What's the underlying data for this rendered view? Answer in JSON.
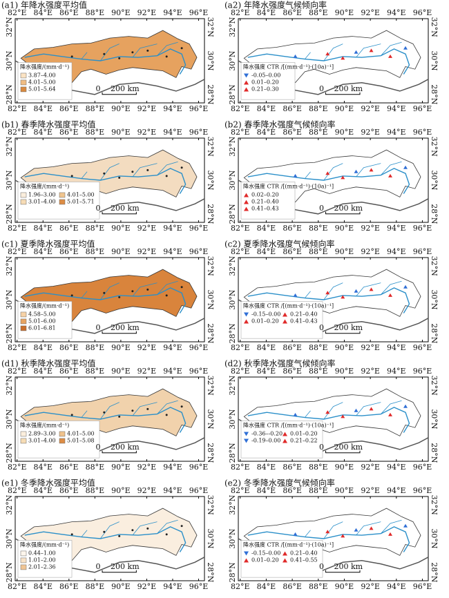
{
  "axes": {
    "x_ticks": [
      "82°E",
      "84°E",
      "86°E",
      "88°E",
      "90°E",
      "92°E",
      "94°E",
      "96°E"
    ],
    "y_ticks": [
      "28°N",
      "30°N",
      "32°N"
    ]
  },
  "scale_bar": {
    "start": "0",
    "end": "200 km"
  },
  "panels": [
    {
      "title": "(a1) 年降水强度平均值",
      "fill": "#e6a25f",
      "legend": {
        "title": "降水强度/(mm·d⁻¹)",
        "items": [
          {
            "label": "3.87–4.00",
            "color": "#fbe3c4"
          },
          {
            "label": "4.01–5.00",
            "color": "#f0bd84"
          },
          {
            "label": "5.01–5.64",
            "color": "#d98a3f"
          }
        ]
      }
    },
    {
      "title": "(a2) 年降水强度气候倾向率",
      "legend": {
        "title": "降水强度 CTR /[(mm·d⁻¹)·(10a)⁻¹]",
        "items": [
          {
            "label": "-0.05–0.00",
            "symbol": "down",
            "color": "#2f6fd6"
          },
          {
            "label": "0.01–0.20",
            "symbol": "up",
            "color": "#e02a2a"
          },
          {
            "label": "0.21–0.30",
            "symbol": "up",
            "color": "#e02a2a"
          }
        ]
      }
    },
    {
      "title": "(b1) 春季降水强度平均值",
      "fill": "#f3dcc0",
      "legend": {
        "title": "降水强度/(mm·d⁻¹)",
        "items": [
          {
            "label": "1.96–3.00",
            "color": "#fbeedd"
          },
          {
            "label": "4.01–5.00",
            "color": "#f0c58f"
          },
          {
            "label": "3.01–4.00",
            "color": "#f6dcb5"
          },
          {
            "label": "5.01–5.71",
            "color": "#dd8d45"
          }
        ]
      }
    },
    {
      "title": "(b2) 春季降水强度气候倾向率",
      "legend": {
        "title": "降水强度 CTR /[(mm·d⁻¹)·(10a)⁻¹]",
        "items": [
          {
            "label": "0.02–0.20",
            "symbol": "up",
            "color": "#e02a2a"
          },
          {
            "label": "0.21–0.40",
            "symbol": "up",
            "color": "#e02a2a"
          },
          {
            "label": "0.41–0.43",
            "symbol": "up",
            "color": "#e02a2a"
          }
        ]
      }
    },
    {
      "title": "(c1) 夏季降水强度平均值",
      "fill": "#d9843c",
      "legend": {
        "title": "降水强度/(mm·d⁻¹)",
        "items": [
          {
            "label": "4.58–5.00",
            "color": "#f6d2a6"
          },
          {
            "label": "5.01–6.00",
            "color": "#e7a462"
          },
          {
            "label": "6.01–6.81",
            "color": "#c96f2c"
          }
        ]
      }
    },
    {
      "title": "(c2) 夏季降水强度气候倾向率",
      "legend": {
        "title": "降水强度 CTR /[(mm·d⁻¹)·(10a)⁻¹]",
        "items": [
          {
            "label": "-0.15–0.00",
            "symbol": "down",
            "color": "#2f6fd6"
          },
          {
            "label": "0.21–0.40",
            "symbol": "up",
            "color": "#e02a2a"
          },
          {
            "label": "0.01–0.20",
            "symbol": "up",
            "color": "#e02a2a"
          },
          {
            "label": "0.41–0.43",
            "symbol": "up",
            "color": "#e02a2a"
          }
        ]
      }
    },
    {
      "title": "(d1) 秋季降水强度平均值",
      "fill": "#f1d2ac",
      "legend": {
        "title": "降水强度/(mm·d⁻¹)",
        "items": [
          {
            "label": "2.89–3.00",
            "color": "#fbeedd"
          },
          {
            "label": "4.01–5.00",
            "color": "#efc28c"
          },
          {
            "label": "3.01–4.00",
            "color": "#f6dcb5"
          },
          {
            "label": "5.01–5.08",
            "color": "#dd8d45"
          }
        ]
      }
    },
    {
      "title": "(d2) 秋季降水强度气候倾向率",
      "legend": {
        "title": "降水强度 CTR /[(mm·d⁻¹)·(10a)⁻¹]",
        "items": [
          {
            "label": "-0.36–-0.20",
            "symbol": "down",
            "color": "#2f6fd6"
          },
          {
            "label": "0.01–0.20",
            "symbol": "up",
            "color": "#e02a2a"
          },
          {
            "label": "-0.19–0.00",
            "symbol": "down",
            "color": "#2f6fd6"
          },
          {
            "label": "0.21–0.22",
            "symbol": "up",
            "color": "#e02a2a"
          }
        ]
      }
    },
    {
      "title": "(e1) 冬季降水强度平均值",
      "fill": "#faeedf",
      "legend": {
        "title": "降水强度/(mm·d⁻¹)",
        "items": [
          {
            "label": "0.44–1.00",
            "color": "#fdf6ec"
          },
          {
            "label": "1.01–2.00",
            "color": "#f8e3c8"
          },
          {
            "label": "2.01–2.36",
            "color": "#f0c594"
          }
        ]
      }
    },
    {
      "title": "(e2) 冬季降水强度气候倾向率",
      "legend": {
        "title": "降水强度 CTR /[(mm·d⁻¹)·(10a)⁻¹]",
        "items": [
          {
            "label": "-0.15–0.00",
            "symbol": "down",
            "color": "#2f6fd6"
          },
          {
            "label": "0.21–0.40",
            "symbol": "up",
            "color": "#e02a2a"
          },
          {
            "label": "0.01–0.20",
            "symbol": "up",
            "color": "#e02a2a"
          },
          {
            "label": "0.41–0.55",
            "symbol": "up",
            "color": "#e02a2a"
          }
        ]
      }
    }
  ]
}
